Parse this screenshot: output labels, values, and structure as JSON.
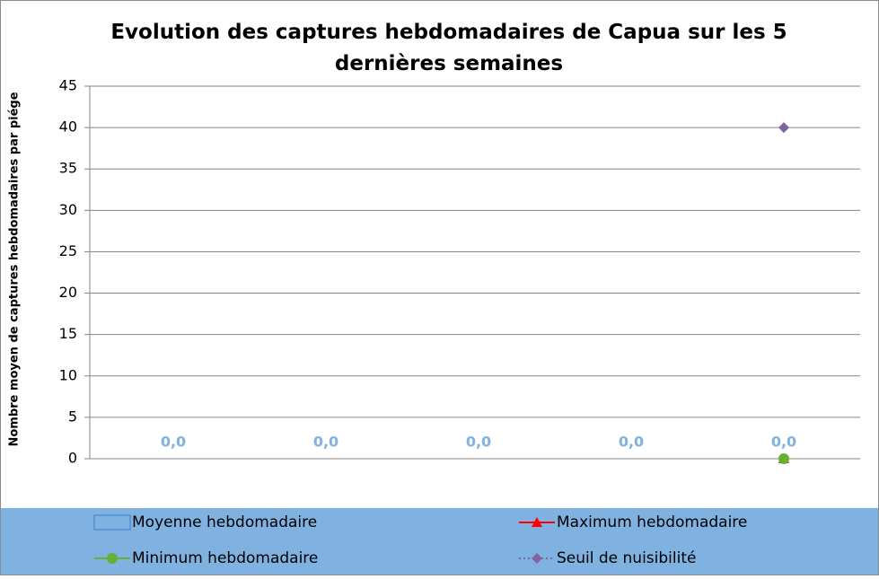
{
  "chart_data": {
    "type": "bar",
    "title": "Evolution des captures hebdomadaires de Capua sur les 5 dernières semaines",
    "y_label": "Nombre moyen de captures hebdomadaires par piége",
    "categories": [
      null,
      null,
      null,
      null,
      null
    ],
    "ylim": [
      0,
      45
    ],
    "yticks": [
      0,
      5,
      10,
      15,
      20,
      25,
      30,
      35,
      40,
      45
    ],
    "grid": true,
    "legend": "bottom",
    "series": [
      {
        "name": "Moyenne hebdomadaire",
        "type": "bar",
        "color": "#4f81bd",
        "values": [
          0,
          0,
          0,
          0,
          0
        ],
        "value_labels": [
          "0,0",
          "0,0",
          "0,0",
          "0,0",
          "0,0"
        ]
      },
      {
        "name": "Maximum hebdomadaire",
        "type": "line",
        "marker": "triangle",
        "color": "#ff0000",
        "values": [
          null,
          null,
          null,
          null,
          0
        ]
      },
      {
        "name": "Minimum hebdomadaire",
        "type": "line",
        "marker": "circle",
        "color": "#66b032",
        "values": [
          null,
          null,
          null,
          null,
          0
        ]
      },
      {
        "name": "Seuil de nuisibilité",
        "type": "line",
        "marker": "diamond",
        "dash": true,
        "color": "#8064a2",
        "values": [
          null,
          null,
          null,
          null,
          40
        ]
      }
    ]
  }
}
